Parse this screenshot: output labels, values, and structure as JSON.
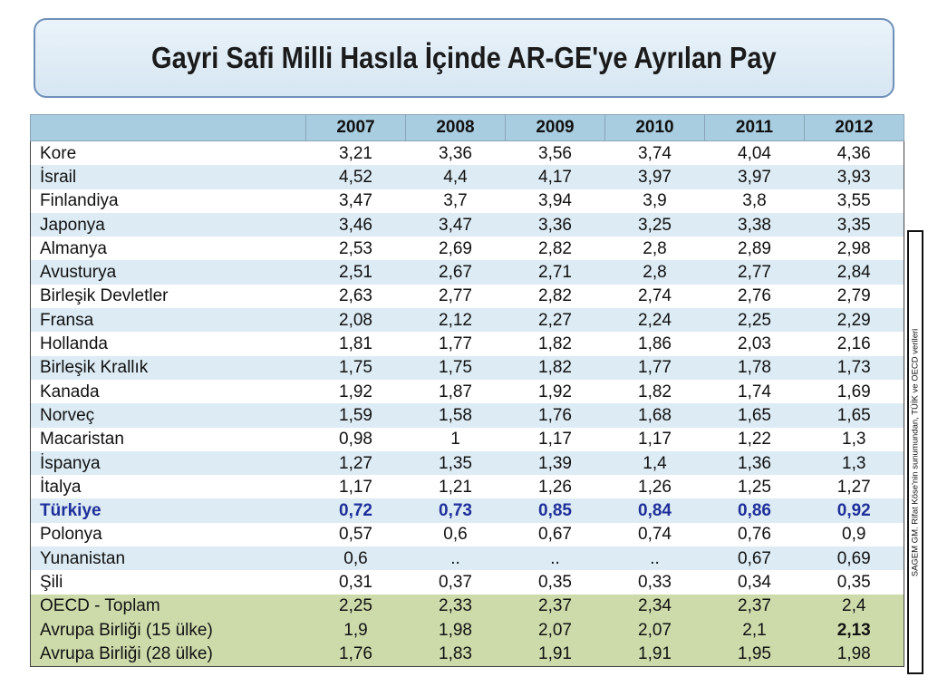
{
  "title": "Gayri Safi Milli Hasıla İçinde AR-GE'ye Ayrılan Pay",
  "years": [
    "2007",
    "2008",
    "2009",
    "2010",
    "2011",
    "2012"
  ],
  "rows": [
    {
      "country": "Kore",
      "values": [
        "3,21",
        "3,36",
        "3,56",
        "3,74",
        "4,04",
        "4,36"
      ]
    },
    {
      "country": "İsrail",
      "values": [
        "4,52",
        "4,4",
        "4,17",
        "3,97",
        "3,97",
        "3,93"
      ]
    },
    {
      "country": "Finlandiya",
      "values": [
        "3,47",
        "3,7",
        "3,94",
        "3,9",
        "3,8",
        "3,55"
      ]
    },
    {
      "country": "Japonya",
      "values": [
        "3,46",
        "3,47",
        "3,36",
        "3,25",
        "3,38",
        "3,35"
      ]
    },
    {
      "country": "Almanya",
      "values": [
        "2,53",
        "2,69",
        "2,82",
        "2,8",
        "2,89",
        "2,98"
      ]
    },
    {
      "country": "Avusturya",
      "values": [
        "2,51",
        "2,67",
        "2,71",
        "2,8",
        "2,77",
        "2,84"
      ]
    },
    {
      "country": "Birleşik Devletler",
      "values": [
        "2,63",
        "2,77",
        "2,82",
        "2,74",
        "2,76",
        "2,79"
      ]
    },
    {
      "country": "Fransa",
      "values": [
        "2,08",
        "2,12",
        "2,27",
        "2,24",
        "2,25",
        "2,29"
      ]
    },
    {
      "country": "Hollanda",
      "values": [
        "1,81",
        "1,77",
        "1,82",
        "1,86",
        "2,03",
        "2,16"
      ]
    },
    {
      "country": "Birleşik Krallık",
      "values": [
        "1,75",
        "1,75",
        "1,82",
        "1,77",
        "1,78",
        "1,73"
      ]
    },
    {
      "country": "Kanada",
      "values": [
        "1,92",
        "1,87",
        "1,92",
        "1,82",
        "1,74",
        "1,69"
      ]
    },
    {
      "country": "Norveç",
      "values": [
        "1,59",
        "1,58",
        "1,76",
        "1,68",
        "1,65",
        "1,65"
      ]
    },
    {
      "country": "Macaristan",
      "values": [
        "0,98",
        "1",
        "1,17",
        "1,17",
        "1,22",
        "1,3"
      ]
    },
    {
      "country": "İspanya",
      "values": [
        "1,27",
        "1,35",
        "1,39",
        "1,4",
        "1,36",
        "1,3"
      ]
    },
    {
      "country": "İtalya",
      "values": [
        "1,17",
        "1,21",
        "1,26",
        "1,26",
        "1,25",
        "1,27"
      ]
    },
    {
      "country": "Türkiye",
      "values": [
        "0,72",
        "0,73",
        "0,85",
        "0,84",
        "0,86",
        "0,92"
      ]
    },
    {
      "country": "Polonya",
      "values": [
        "0,57",
        "0,6",
        "0,67",
        "0,74",
        "0,76",
        "0,9"
      ]
    },
    {
      "country": "Yunanistan",
      "values": [
        "0,6",
        "..",
        "..",
        "..",
        "0,67",
        "0,69"
      ]
    },
    {
      "country": "Şili",
      "values": [
        "0,31",
        "0,37",
        "0,35",
        "0,33",
        "0,34",
        "0,35"
      ]
    }
  ],
  "highlight_country": "Türkiye",
  "highlight_color": "#1f2f9a",
  "summary_rows": [
    {
      "label": "OECD - Toplam",
      "values": [
        "2,25",
        "2,33",
        "2,37",
        "2,34",
        "2,37",
        "2,4"
      ]
    },
    {
      "label": "Avrupa Birliği (15 ülke)",
      "values": [
        "1,9",
        "1,98",
        "2,07",
        "2,07",
        "2,1",
        "2,13"
      ],
      "bold_value": "2,13"
    },
    {
      "label": "Avrupa Birliği (28 ülke)",
      "values": [
        "1,76",
        "1,83",
        "1,91",
        "1,91",
        "1,95",
        "1,98"
      ]
    }
  ],
  "source_note": "SAGEM GM. Rifat Köse'nin sunumundan, TÜİK ve OECD verileri"
}
